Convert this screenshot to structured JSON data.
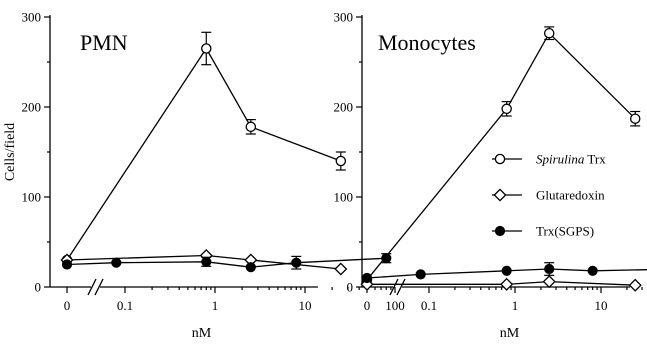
{
  "chart_data": [
    {
      "type": "line",
      "title": "PMN",
      "xlabel": "nM",
      "ylabel": "Cells/field",
      "x_scale": "log",
      "x_axis_break": true,
      "x_tick_labels": [
        "0",
        "0.1",
        "1",
        "10",
        "100"
      ],
      "y_tick_labels": [
        "0",
        "100",
        "200",
        "300"
      ],
      "ylim": [
        0,
        300
      ],
      "series": [
        {
          "key": "spirulina",
          "marker": "open-circle",
          "points": [
            {
              "x": 0,
              "y": 30,
              "err": 0
            },
            {
              "x": 0.8,
              "y": 265,
              "err": 18
            },
            {
              "x": 2.5,
              "y": 178,
              "err": 8
            },
            {
              "x": 25,
              "y": 140,
              "err": 10
            }
          ]
        },
        {
          "key": "glutaredoxin",
          "marker": "open-diamond",
          "points": [
            {
              "x": 0,
              "y": 30,
              "err": 0
            },
            {
              "x": 0.8,
              "y": 35,
              "err": 0
            },
            {
              "x": 2.5,
              "y": 30,
              "err": 0
            },
            {
              "x": 25,
              "y": 20,
              "err": 0
            }
          ]
        },
        {
          "key": "sgps",
          "marker": "filled-circle",
          "points": [
            {
              "x": 0,
              "y": 25,
              "err": 0
            },
            {
              "x": 0.08,
              "y": 27,
              "err": 0
            },
            {
              "x": 0.8,
              "y": 28,
              "err": 5
            },
            {
              "x": 2.5,
              "y": 22,
              "err": 0
            },
            {
              "x": 8,
              "y": 27,
              "err": 7
            },
            {
              "x": 80,
              "y": 32,
              "err": 5
            }
          ]
        }
      ]
    },
    {
      "type": "line",
      "title": "Monocytes",
      "xlabel": "nM",
      "ylabel": "",
      "x_scale": "log",
      "x_axis_break": true,
      "x_tick_labels": [
        "0",
        "0.1",
        "1",
        "10",
        "100"
      ],
      "y_tick_labels": [
        "0",
        "100",
        "200",
        "300"
      ],
      "ylim": [
        0,
        300
      ],
      "series": [
        {
          "key": "spirulina",
          "marker": "open-circle",
          "points": [
            {
              "x": 0,
              "y": 8,
              "err": 0
            },
            {
              "x": 0.8,
              "y": 198,
              "err": 8
            },
            {
              "x": 2.5,
              "y": 282,
              "err": 7
            },
            {
              "x": 25,
              "y": 187,
              "err": 8
            }
          ]
        },
        {
          "key": "glutaredoxin",
          "marker": "open-diamond",
          "points": [
            {
              "x": 0,
              "y": 3,
              "err": 0
            },
            {
              "x": 0.8,
              "y": 3,
              "err": 0
            },
            {
              "x": 2.5,
              "y": 6,
              "err": 0
            },
            {
              "x": 25,
              "y": 2,
              "err": 0
            }
          ]
        },
        {
          "key": "sgps",
          "marker": "filled-circle",
          "points": [
            {
              "x": 0,
              "y": 10,
              "err": 0
            },
            {
              "x": 0.08,
              "y": 14,
              "err": 0
            },
            {
              "x": 0.8,
              "y": 18,
              "err": 0
            },
            {
              "x": 2.5,
              "y": 20,
              "err": 7
            },
            {
              "x": 8,
              "y": 18,
              "err": 0
            },
            {
              "x": 80,
              "y": 20,
              "err": 8
            }
          ]
        }
      ]
    }
  ],
  "legend": {
    "placement": "right, inside Monocytes panel",
    "entries": [
      {
        "key": "spirulina",
        "italic": "Spirulina",
        "rest": " Trx",
        "marker": "open-circle"
      },
      {
        "key": "glutaredoxin",
        "italic": "",
        "rest": "Glutaredoxin",
        "marker": "open-diamond"
      },
      {
        "key": "sgps",
        "italic": "",
        "rest": "Trx(SGPS)",
        "marker": "filled-circle"
      }
    ]
  }
}
